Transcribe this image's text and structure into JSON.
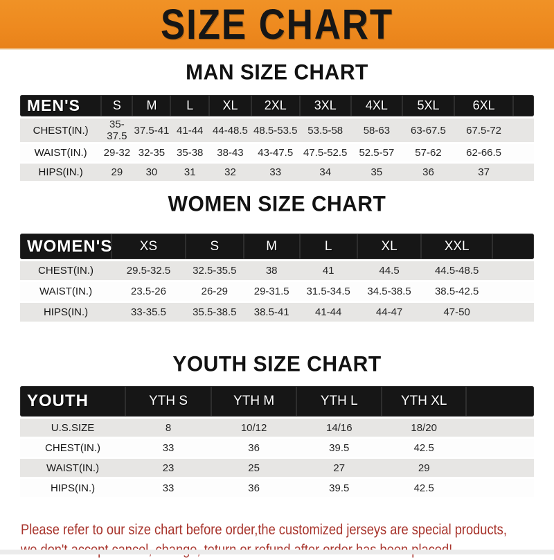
{
  "banner": {
    "title": "SIZE CHART",
    "bg_color": "#ee8a1f",
    "text_color": "#161616"
  },
  "colors": {
    "header_bar": "#161616",
    "row_shaded": "#e7e6e4",
    "row_plain": "#fdfdfd",
    "footer_text": "#a8342c"
  },
  "sections": [
    {
      "heading": "MAN SIZE CHART",
      "header_label": "MEN'S",
      "columns": [
        "S",
        "M",
        "L",
        "XL",
        "2XL",
        "3XL",
        "4XL",
        "5XL",
        "6XL"
      ],
      "rows": [
        {
          "label": "CHEST(IN.)",
          "values": [
            "35-37.5",
            "37.5-41",
            "41-44",
            "44-48.5",
            "48.5-53.5",
            "53.5-58",
            "58-63",
            "63-67.5",
            "67.5-72"
          ]
        },
        {
          "label": "WAIST(IN.)",
          "values": [
            "29-32",
            "32-35",
            "35-38",
            "38-43",
            "43-47.5",
            "47.5-52.5",
            "52.5-57",
            "57-62",
            "62-66.5"
          ]
        },
        {
          "label": "HIPS(IN.)",
          "values": [
            "29",
            "30",
            "31",
            "32",
            "33",
            "34",
            "35",
            "36",
            "37"
          ]
        }
      ]
    },
    {
      "heading": "WOMEN SIZE CHART",
      "header_label": "WOMEN'S",
      "columns": [
        "XS",
        "S",
        "M",
        "L",
        "XL",
        "XXL"
      ],
      "rows": [
        {
          "label": "CHEST(IN.)",
          "values": [
            "29.5-32.5",
            "32.5-35.5",
            "38",
            "41",
            "44.5",
            "44.5-48.5"
          ]
        },
        {
          "label": "WAIST(IN.)",
          "values": [
            "23.5-26",
            "26-29",
            "29-31.5",
            "31.5-34.5",
            "34.5-38.5",
            "38.5-42.5"
          ]
        },
        {
          "label": "HIPS(IN.)",
          "values": [
            "33-35.5",
            "35.5-38.5",
            "38.5-41",
            "41-44",
            "44-47",
            "47-50"
          ]
        }
      ]
    },
    {
      "heading": "YOUTH SIZE CHART",
      "header_label": "YOUTH",
      "columns": [
        "YTH S",
        "YTH M",
        "YTH L",
        "YTH XL"
      ],
      "rows": [
        {
          "label": "U.S.SIZE",
          "values": [
            "8",
            "10/12",
            "14/16",
            "18/20"
          ]
        },
        {
          "label": "CHEST(IN.)",
          "values": [
            "33",
            "36",
            "39.5",
            "42.5"
          ]
        },
        {
          "label": "WAIST(IN.)",
          "values": [
            "23",
            "25",
            "27",
            "29"
          ]
        },
        {
          "label": "HIPS(IN.)",
          "values": [
            "33",
            "36",
            "39.5",
            "42.5"
          ]
        }
      ]
    }
  ],
  "footer": {
    "line1": "Please refer to our size chart before order,the customized jerseys are special products,",
    "line2": "we don't accept cancel, change, teturn or refund after order has been placed!"
  }
}
